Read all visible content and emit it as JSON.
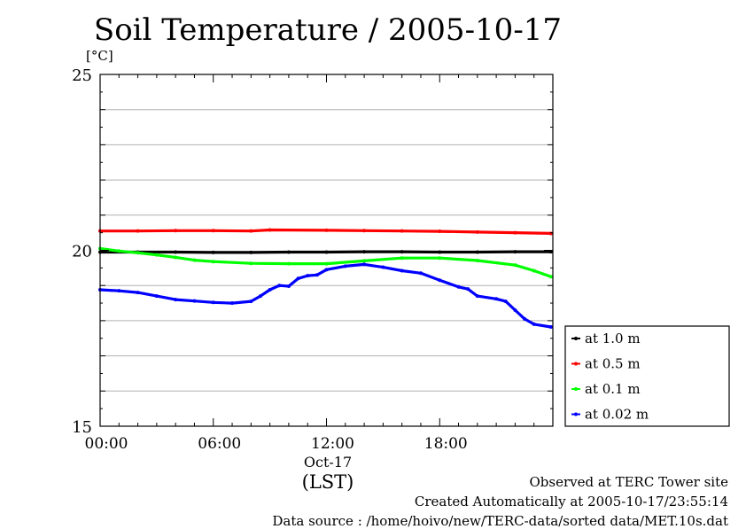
{
  "chart_data": {
    "type": "line",
    "title": "Soil Temperature / 2005-10-17",
    "y_unit": "[°C]",
    "ylim": [
      15,
      25
    ],
    "y_ticks": [
      15,
      20,
      25
    ],
    "y_tick_labels": [
      "15",
      "20",
      "25"
    ],
    "y_gridlines": [
      16,
      17,
      18,
      19,
      21,
      22,
      23,
      24
    ],
    "xlim_hours": [
      0,
      24
    ],
    "x_ticks_hours": [
      0,
      6,
      12,
      18
    ],
    "x_tick_labels": [
      "00:00",
      "06:00",
      "12:00",
      "18:00"
    ],
    "x_date_label": "Oct-17",
    "x_zone_label": "(LST)",
    "legend_position": "right",
    "series": [
      {
        "name": "at 1.0 m",
        "color": "#000000",
        "x": [
          0,
          2,
          4,
          6,
          8,
          10,
          12,
          14,
          16,
          18,
          20,
          22,
          23.9
        ],
        "y": [
          19.95,
          19.95,
          19.95,
          19.94,
          19.94,
          19.95,
          19.95,
          19.96,
          19.96,
          19.95,
          19.95,
          19.96,
          19.96
        ]
      },
      {
        "name": "at 0.5 m",
        "color": "#ff0000",
        "x": [
          0,
          2,
          4,
          6,
          8,
          9,
          12,
          14,
          16,
          18,
          20,
          22,
          23.9
        ],
        "y": [
          20.55,
          20.55,
          20.56,
          20.56,
          20.55,
          20.58,
          20.57,
          20.56,
          20.55,
          20.54,
          20.52,
          20.5,
          20.48
        ]
      },
      {
        "name": "at 0.1 m",
        "color": "#00ff00",
        "x": [
          0,
          1,
          2,
          3,
          4,
          5,
          6,
          8,
          10,
          12,
          14,
          16,
          18,
          20,
          22,
          23,
          23.9
        ],
        "y": [
          20.05,
          19.98,
          19.93,
          19.87,
          19.8,
          19.72,
          19.68,
          19.63,
          19.62,
          19.62,
          19.7,
          19.78,
          19.78,
          19.71,
          19.58,
          19.42,
          19.25
        ]
      },
      {
        "name": "at 0.02 m",
        "color": "#0000ff",
        "x": [
          0,
          1,
          2,
          3,
          4,
          5,
          6,
          7,
          8,
          8.5,
          9,
          9.5,
          10,
          10.5,
          11,
          11.5,
          12,
          13,
          14,
          15,
          16,
          17,
          18,
          19,
          19.5,
          20,
          21,
          21.5,
          22,
          22.5,
          23,
          23.9
        ],
        "y": [
          18.88,
          18.85,
          18.8,
          18.7,
          18.6,
          18.56,
          18.52,
          18.5,
          18.55,
          18.7,
          18.88,
          19.0,
          18.98,
          19.2,
          19.28,
          19.3,
          19.45,
          19.55,
          19.6,
          19.52,
          19.42,
          19.35,
          19.15,
          18.96,
          18.9,
          18.7,
          18.62,
          18.55,
          18.3,
          18.05,
          17.9,
          17.82
        ]
      }
    ]
  },
  "footer": {
    "line1": "Observed at TERC Tower site",
    "line2": "Created Automatically at 2005-10-17/23:55:14",
    "line3": "Data source : /home/hoivo/new/TERC-data/sorted  data/MET.10s.dat"
  }
}
